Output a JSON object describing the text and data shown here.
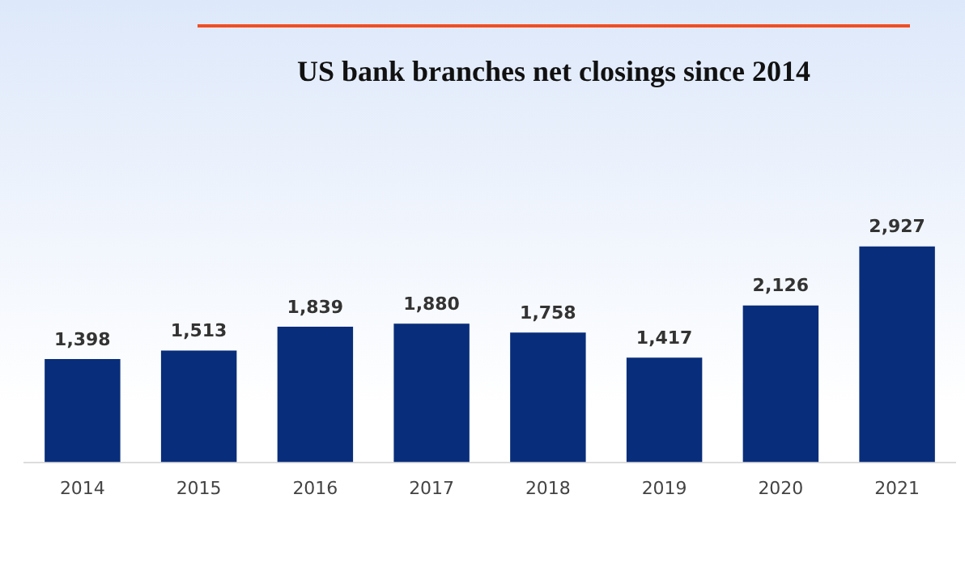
{
  "chart_data": {
    "type": "bar",
    "title": "US bank branches net closings since 2014",
    "categories": [
      "2014",
      "2015",
      "2016",
      "2017",
      "2018",
      "2019",
      "2020",
      "2021"
    ],
    "values": [
      1398,
      1513,
      1839,
      1880,
      1758,
      1417,
      2126,
      2927
    ],
    "value_labels": [
      "1,398",
      "1,513",
      "1,839",
      "1,880",
      "1,758",
      "1,417",
      "2,126",
      "2,927"
    ],
    "color": "#082d7a",
    "grid": false,
    "legend": false
  }
}
